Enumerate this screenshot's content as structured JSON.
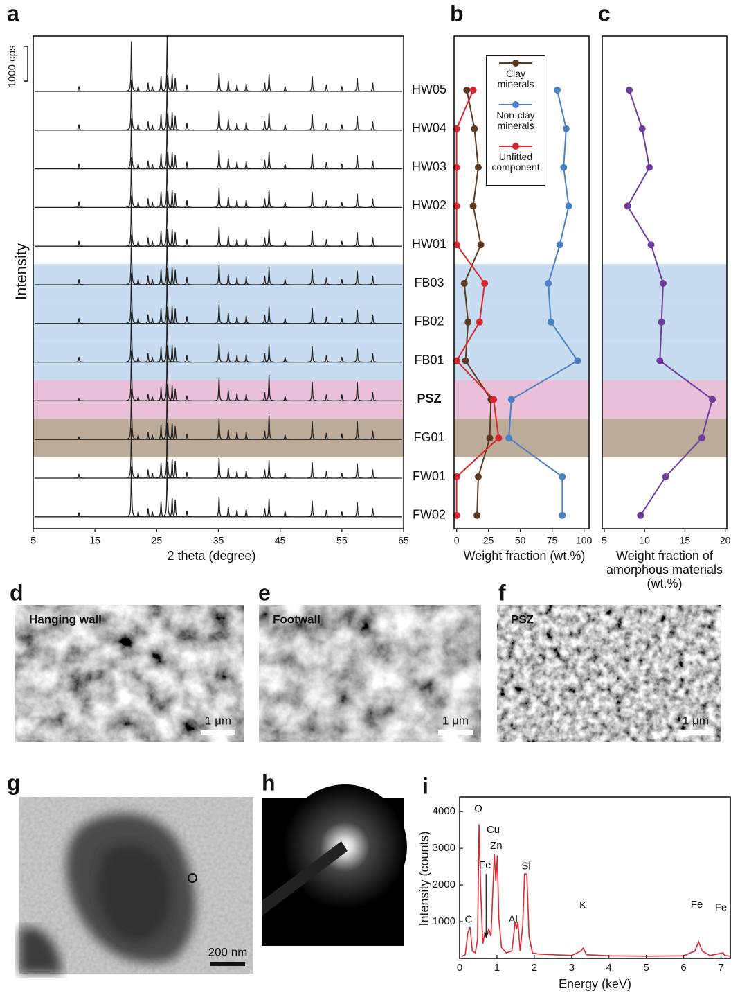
{
  "chart_data": [
    {
      "panel": "a",
      "type": "spectra",
      "color": "#1f1f1f",
      "categories": [
        "HW05",
        "HW04",
        "HW03",
        "HW02",
        "HW01",
        "FB03",
        "FB02",
        "FB01",
        "PSZ",
        "FG01",
        "FW01",
        "FW02"
      ],
      "label_colors": [
        null,
        null,
        null,
        null,
        null,
        null,
        null,
        null,
        "#d7282f",
        null,
        null,
        null
      ],
      "band_colors": [
        null,
        null,
        null,
        null,
        null,
        "#c7dbf1",
        "#c7dbf1",
        "#c7dbf1",
        "#eac0d8",
        "#bcab98",
        null,
        null
      ],
      "x": [
        12.4,
        20.9,
        22.0,
        23.6,
        24.3,
        25.7,
        26.7,
        27.5,
        28.0,
        29.9,
        35.1,
        36.6,
        38.0,
        39.5,
        42.5,
        43.2,
        45.8,
        50.2,
        52.5,
        55.0,
        57.5,
        60.0
      ],
      "series": [
        {
          "values": [
            150,
            1450,
            150,
            250,
            150,
            450,
            1600,
            500,
            400,
            200,
            550,
            300,
            200,
            220,
            250,
            500,
            150,
            450,
            200,
            150,
            400,
            250
          ]
        },
        {
          "values": [
            160,
            1450,
            170,
            260,
            150,
            470,
            1600,
            520,
            420,
            210,
            560,
            310,
            210,
            230,
            260,
            500,
            160,
            460,
            200,
            160,
            410,
            250
          ]
        },
        {
          "values": [
            150,
            1450,
            150,
            240,
            140,
            440,
            1600,
            490,
            400,
            200,
            540,
            300,
            200,
            210,
            250,
            490,
            150,
            440,
            190,
            150,
            390,
            240
          ]
        },
        {
          "values": [
            170,
            1450,
            160,
            260,
            160,
            460,
            1600,
            510,
            410,
            210,
            560,
            300,
            210,
            220,
            260,
            510,
            150,
            450,
            200,
            150,
            400,
            250
          ]
        },
        {
          "values": [
            150,
            1450,
            150,
            250,
            150,
            450,
            1600,
            500,
            400,
            200,
            550,
            300,
            200,
            220,
            250,
            500,
            150,
            450,
            200,
            150,
            400,
            250
          ]
        },
        {
          "values": [
            160,
            1450,
            160,
            270,
            160,
            460,
            1600,
            520,
            450,
            220,
            560,
            310,
            210,
            230,
            260,
            500,
            160,
            460,
            210,
            160,
            410,
            260
          ]
        },
        {
          "values": [
            150,
            1450,
            150,
            260,
            150,
            450,
            1600,
            510,
            430,
            210,
            550,
            300,
            200,
            220,
            250,
            500,
            150,
            450,
            200,
            150,
            400,
            250
          ]
        },
        {
          "values": [
            150,
            1450,
            150,
            250,
            150,
            450,
            1600,
            500,
            420,
            200,
            560,
            300,
            200,
            220,
            250,
            500,
            150,
            450,
            200,
            150,
            400,
            250
          ]
        },
        {
          "values": [
            60,
            1450,
            120,
            200,
            120,
            400,
            1600,
            450,
            350,
            150,
            650,
            300,
            220,
            200,
            250,
            750,
            130,
            550,
            180,
            180,
            550,
            250
          ]
        },
        {
          "values": [
            70,
            1450,
            130,
            220,
            130,
            420,
            1600,
            470,
            380,
            160,
            620,
            300,
            210,
            210,
            250,
            700,
            140,
            520,
            190,
            170,
            520,
            250
          ]
        },
        {
          "values": [
            120,
            1450,
            150,
            250,
            150,
            450,
            1600,
            550,
            500,
            180,
            580,
            300,
            200,
            220,
            250,
            520,
            150,
            460,
            200,
            150,
            420,
            250
          ]
        },
        {
          "values": [
            120,
            1450,
            150,
            250,
            150,
            450,
            1600,
            550,
            500,
            180,
            580,
            300,
            200,
            220,
            250,
            520,
            150,
            460,
            200,
            150,
            420,
            250
          ]
        }
      ],
      "xlim": [
        5,
        65
      ],
      "xticks": [
        5,
        15,
        25,
        35,
        45,
        55,
        65
      ],
      "xlabel": "2 theta (degree)",
      "ylabel": "Intensity",
      "scale_bar": {
        "value": 1000,
        "label": "1000 cps"
      }
    },
    {
      "panel": "b",
      "type": "profile",
      "legend": "top",
      "series": [
        {
          "name": "Clay minerals",
          "color": "#5b3a1f",
          "values": [
            8,
            14,
            17,
            13,
            19,
            6,
            9,
            7,
            27,
            26,
            17,
            16
          ]
        },
        {
          "name": "Non-clay minerals",
          "color": "#4a80c4",
          "values": [
            79,
            86,
            84,
            88,
            81,
            72,
            74,
            95,
            43,
            41,
            83,
            83
          ]
        },
        {
          "name": "Unfitted component",
          "color": "#d7282f",
          "values": [
            13,
            0,
            0,
            0,
            0,
            22,
            18,
            0,
            29,
            33,
            0,
            0
          ]
        }
      ],
      "xlim": [
        -2,
        104
      ],
      "xticks": [
        0,
        25,
        50,
        75,
        100
      ],
      "xlabel": "Weight fraction (wt.%)"
    },
    {
      "panel": "c",
      "type": "profile",
      "series": [
        {
          "color": "#6f3c9c",
          "values": [
            8.1,
            9.7,
            10.6,
            7.9,
            10.8,
            12.3,
            12.1,
            11.9,
            18.4,
            17.1,
            12.6,
            9.5
          ]
        }
      ],
      "xlim": [
        4.75,
        20.2
      ],
      "xticks": [
        5,
        10,
        15,
        20
      ],
      "xlabel": "Weight fraction of amorphous materials (wt.%)"
    },
    {
      "panel": "i",
      "type": "line",
      "color": "#d7282f",
      "x": [
        0.05,
        0.15,
        0.22,
        0.28,
        0.34,
        0.42,
        0.48,
        0.52,
        0.56,
        0.62,
        0.68,
        0.72,
        0.78,
        0.84,
        0.93,
        0.97,
        1.01,
        1.05,
        1.12,
        1.25,
        1.4,
        1.49,
        1.53,
        1.56,
        1.62,
        1.69,
        1.74,
        1.8,
        1.86,
        1.95,
        2.1,
        2.5,
        3.0,
        3.25,
        3.31,
        3.4,
        4.0,
        5.0,
        6.0,
        6.3,
        6.4,
        6.5,
        6.7,
        7.06,
        7.1,
        7.25
      ],
      "values": [
        50,
        100,
        700,
        850,
        200,
        150,
        500,
        3650,
        2000,
        400,
        700,
        600,
        800,
        600,
        2850,
        2100,
        2800,
        1100,
        300,
        150,
        200,
        1000,
        800,
        1000,
        200,
        900,
        2300,
        2300,
        600,
        150,
        120,
        100,
        80,
        200,
        280,
        100,
        70,
        60,
        70,
        200,
        450,
        200,
        80,
        150,
        80,
        60
      ],
      "xlim": [
        0,
        7.25
      ],
      "ylim": [
        0,
        4400
      ],
      "xticks": [
        0,
        1,
        2,
        3,
        4,
        5,
        6,
        7
      ],
      "yticks": [
        1000,
        2000,
        3000,
        4000
      ],
      "xlabel": "Energy (keV)",
      "ylabel": "Intensity (counts)",
      "annotations": [
        {
          "text": "C",
          "x": 0.24,
          "y": 1050
        },
        {
          "text": "O",
          "x": 0.5,
          "y": 4070
        },
        {
          "text": "Cu",
          "x": 0.9,
          "y": 3490
        },
        {
          "text": "Zn",
          "x": 0.98,
          "y": 3060
        },
        {
          "text": "Fe",
          "x": 0.68,
          "y": 2530,
          "arrow_to": [
            0.71,
            550
          ]
        },
        {
          "text": "Si",
          "x": 1.78,
          "y": 2500
        },
        {
          "text": "Al",
          "x": 1.43,
          "y": 1050
        },
        {
          "text": "K",
          "x": 3.3,
          "y": 1430
        },
        {
          "text": "Fe",
          "x": 6.35,
          "y": 1450
        },
        {
          "text": "Fe",
          "x": 7.0,
          "y": 1370
        }
      ]
    }
  ],
  "images": [
    {
      "panel": "d",
      "label": "Hanging wall",
      "scale_bar": "1 μm"
    },
    {
      "panel": "e",
      "label": "Footwall",
      "scale_bar": "1 μm"
    },
    {
      "panel": "f",
      "label": "PSZ",
      "scale_bar": "1 μm"
    },
    {
      "panel": "g",
      "scale_bar": "200 nm"
    },
    {
      "panel": "h"
    }
  ]
}
